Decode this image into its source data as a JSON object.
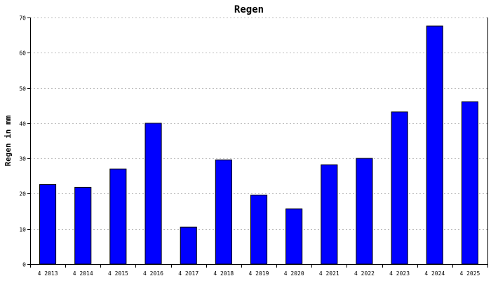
{
  "chart_data": {
    "type": "bar",
    "title": "Regen",
    "xlabel": "",
    "ylabel": "Regen in mm",
    "ylim": [
      0,
      70
    ],
    "yticks": [
      0,
      10,
      20,
      30,
      40,
      50,
      60,
      70
    ],
    "grid": true,
    "legend": "none",
    "bar_color": "#0000ff",
    "categories": [
      "4 2013",
      "4 2014",
      "4 2015",
      "4 2016",
      "4 2017",
      "4 2018",
      "4 2019",
      "4 2020",
      "4 2021",
      "4 2022",
      "4 2023",
      "4 2024",
      "4 2025"
    ],
    "values": [
      22.6,
      21.8,
      27.0,
      40.0,
      10.5,
      29.6,
      19.6,
      15.7,
      28.2,
      30.0,
      43.2,
      67.6,
      46.1
    ]
  }
}
